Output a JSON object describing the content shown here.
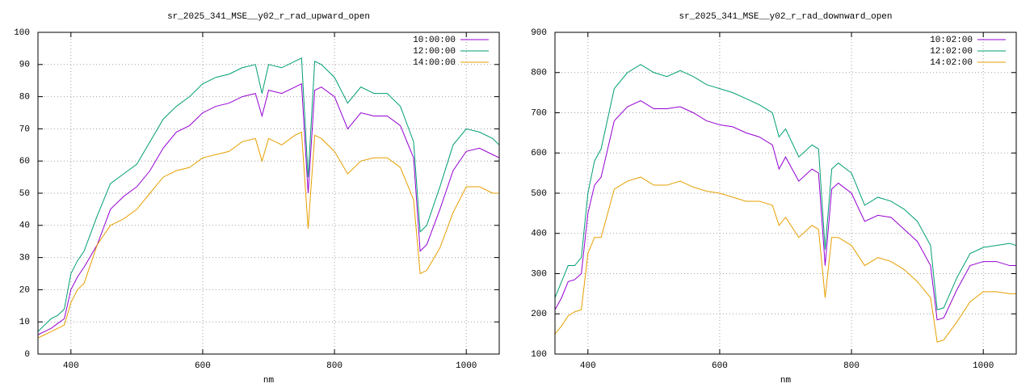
{
  "chart_data": [
    {
      "type": "line",
      "title": "sr_2025_341_MSE__y02_r_rad_upward_open",
      "x_label": "nm",
      "x": [
        350,
        360,
        370,
        380,
        390,
        400,
        410,
        420,
        440,
        460,
        480,
        500,
        520,
        540,
        560,
        580,
        600,
        620,
        640,
        660,
        680,
        690,
        700,
        720,
        740,
        750,
        760,
        770,
        780,
        800,
        820,
        840,
        860,
        880,
        900,
        920,
        930,
        940,
        960,
        980,
        1000,
        1020,
        1040,
        1050
      ],
      "xlim": [
        350,
        1050
      ],
      "xticks": [
        400,
        600,
        800,
        1000
      ],
      "ylim": [
        0,
        100
      ],
      "yticks": [
        0,
        10,
        20,
        30,
        40,
        50,
        60,
        70,
        80,
        90,
        100
      ],
      "grid": true,
      "legend": "top-right",
      "series": [
        {
          "name": "10:00:00",
          "color": "#9400d3",
          "values": [
            6,
            7,
            8,
            9.5,
            11,
            20,
            24,
            27,
            34,
            45,
            49,
            52,
            57,
            64,
            69,
            71,
            75,
            77,
            78,
            80,
            81,
            74,
            82,
            81,
            83,
            84,
            50,
            82,
            83,
            80,
            70,
            75,
            74,
            74,
            71,
            61,
            32,
            34,
            45,
            57,
            63,
            64,
            62,
            61
          ]
        },
        {
          "name": "12:00:00",
          "color": "#009e73",
          "values": [
            7,
            9,
            11,
            12,
            14,
            25,
            29,
            32,
            43,
            53,
            56,
            59,
            66,
            73,
            77,
            80,
            84,
            86,
            87,
            89,
            90,
            81,
            90,
            89,
            91,
            92,
            55,
            91,
            90,
            86,
            78,
            83,
            81,
            81,
            77,
            66,
            38,
            40,
            52,
            65,
            70,
            69,
            67,
            65
          ]
        },
        {
          "name": "14:00:00",
          "color": "#e69f00",
          "values": [
            5,
            6,
            7,
            8,
            9,
            16,
            20,
            22,
            34,
            40,
            42,
            45,
            50,
            55,
            57,
            58,
            61,
            62,
            63,
            66,
            67,
            60,
            67,
            65,
            68,
            69,
            39,
            68,
            67,
            63,
            56,
            60,
            61,
            61,
            58,
            48,
            25,
            26,
            33,
            44,
            52,
            52,
            50,
            50
          ]
        }
      ]
    },
    {
      "type": "line",
      "title": "sr_2025_341_MSE__y02_r_rad_downward_open",
      "x_label": "nm",
      "x": [
        350,
        360,
        370,
        380,
        390,
        400,
        410,
        420,
        440,
        460,
        480,
        500,
        520,
        540,
        560,
        580,
        600,
        620,
        640,
        660,
        680,
        690,
        700,
        720,
        740,
        750,
        760,
        770,
        780,
        800,
        820,
        840,
        860,
        880,
        900,
        920,
        930,
        940,
        960,
        980,
        1000,
        1020,
        1040,
        1050
      ],
      "xlim": [
        350,
        1050
      ],
      "xticks": [
        400,
        600,
        800,
        1000
      ],
      "ylim": [
        100,
        900
      ],
      "yticks": [
        100,
        200,
        300,
        400,
        500,
        600,
        700,
        800,
        900
      ],
      "grid": true,
      "legend": "top-right",
      "series": [
        {
          "name": "10:02:00",
          "color": "#9400d3",
          "values": [
            210,
            240,
            280,
            285,
            300,
            450,
            520,
            540,
            680,
            715,
            730,
            710,
            710,
            715,
            700,
            680,
            670,
            665,
            650,
            640,
            620,
            560,
            590,
            530,
            560,
            550,
            320,
            510,
            525,
            500,
            430,
            445,
            440,
            410,
            380,
            320,
            185,
            190,
            260,
            320,
            330,
            330,
            320,
            320
          ]
        },
        {
          "name": "12:02:00",
          "color": "#009e73",
          "values": [
            240,
            280,
            320,
            320,
            340,
            500,
            580,
            610,
            760,
            800,
            820,
            800,
            790,
            805,
            790,
            770,
            760,
            750,
            735,
            720,
            700,
            640,
            660,
            590,
            620,
            610,
            360,
            560,
            575,
            550,
            470,
            490,
            480,
            460,
            430,
            370,
            210,
            215,
            290,
            350,
            365,
            370,
            375,
            370
          ]
        },
        {
          "name": "14:02:00",
          "color": "#e69f00",
          "values": [
            150,
            170,
            195,
            205,
            210,
            350,
            390,
            390,
            510,
            530,
            540,
            520,
            520,
            530,
            515,
            505,
            500,
            490,
            480,
            480,
            470,
            420,
            440,
            390,
            420,
            410,
            240,
            390,
            390,
            370,
            320,
            340,
            330,
            310,
            280,
            240,
            130,
            135,
            180,
            230,
            255,
            255,
            250,
            250
          ]
        }
      ]
    }
  ]
}
